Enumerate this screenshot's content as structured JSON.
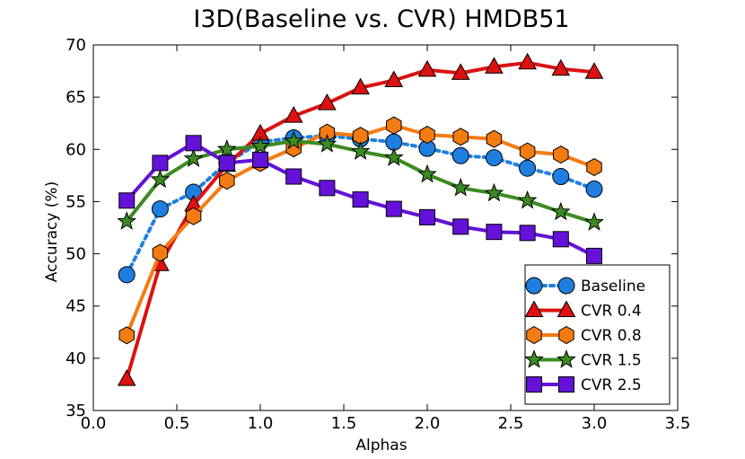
{
  "chart_data": {
    "type": "line",
    "title": "I3D(Baseline vs. CVR) HMDB51",
    "xlabel": "Alphas",
    "ylabel": "Accuracy (%)",
    "xlim": [
      0.0,
      3.5
    ],
    "ylim": [
      35,
      70
    ],
    "xticks": [
      "0.0",
      "0.5",
      "1.0",
      "1.5",
      "2.0",
      "2.5",
      "3.0",
      "3.5"
    ],
    "yticks": [
      "35",
      "40",
      "45",
      "50",
      "55",
      "60",
      "65",
      "70"
    ],
    "x": [
      0.2,
      0.4,
      0.6,
      0.8,
      1.0,
      1.2,
      1.4,
      1.6,
      1.8,
      2.0,
      2.2,
      2.4,
      2.6,
      2.8,
      3.0
    ],
    "legend_position": "lower-right",
    "series": [
      {
        "name": "Baseline",
        "color": "#1f7fe0",
        "marker": "circle",
        "linestyle": "dotted",
        "values": [
          48.0,
          54.3,
          55.9,
          58.7,
          60.7,
          61.1,
          61.3,
          61.0,
          60.7,
          60.1,
          59.4,
          59.2,
          58.2,
          57.4,
          56.2
        ]
      },
      {
        "name": "CVR 0.4",
        "color": "#dd1111",
        "marker": "triangle",
        "linestyle": "solid",
        "values": [
          38.0,
          49.0,
          54.7,
          58.5,
          61.5,
          63.2,
          64.4,
          65.9,
          66.6,
          67.6,
          67.3,
          67.9,
          68.3,
          67.7,
          67.4
        ]
      },
      {
        "name": "CVR 0.8",
        "color": "#f47b12",
        "marker": "hexagon",
        "linestyle": "solid",
        "values": [
          42.2,
          50.1,
          53.6,
          57.0,
          58.7,
          60.1,
          61.6,
          61.3,
          62.3,
          61.4,
          61.2,
          61.0,
          59.8,
          59.5,
          58.3
        ]
      },
      {
        "name": "CVR 1.5",
        "color": "#3c8b22",
        "marker": "star",
        "linestyle": "solid",
        "values": [
          53.1,
          57.1,
          59.1,
          60.0,
          60.3,
          60.8,
          60.5,
          59.8,
          59.2,
          57.6,
          56.3,
          55.8,
          55.1,
          54.0,
          53.0
        ]
      },
      {
        "name": "CVR 2.5",
        "color": "#6411d9",
        "marker": "square",
        "linestyle": "solid",
        "values": [
          55.1,
          58.7,
          60.6,
          58.7,
          59.0,
          57.4,
          56.3,
          55.2,
          54.3,
          53.5,
          52.6,
          52.1,
          52.0,
          51.4,
          49.8
        ]
      }
    ]
  }
}
